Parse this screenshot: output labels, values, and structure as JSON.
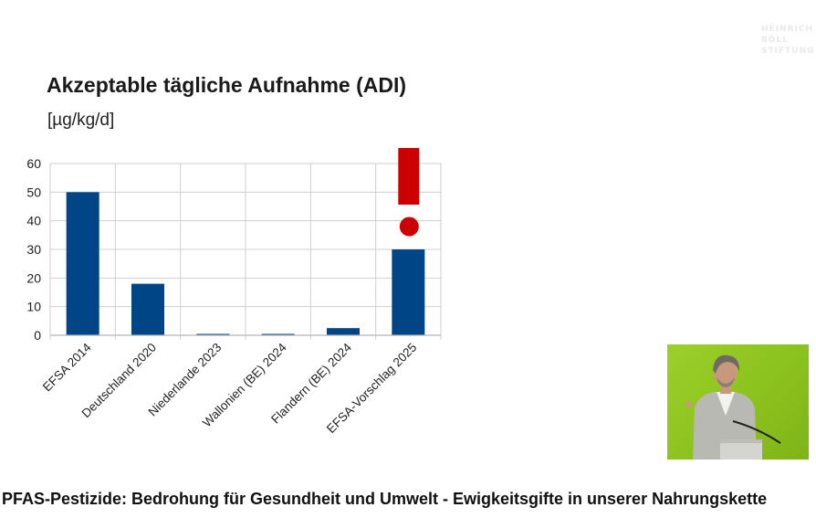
{
  "logo": {
    "lines": [
      "HEINRICH",
      "BÖLL",
      "STIFTUNG"
    ]
  },
  "slide": {
    "title": "Akzeptable tägliche Aufnahme (ADI)",
    "unit": "[µg/kg/d]"
  },
  "chart_data": {
    "type": "bar",
    "title": "Akzeptable tägliche Aufnahme (ADI)",
    "ylabel": "[µg/kg/d]",
    "xlabel": "",
    "categories": [
      "EFSA 2014",
      "Deutschland 2020",
      "Niederlande 2023",
      "Wallonien (BE) 2024",
      "Flandern (BE) 2024",
      "EFSA-Vorschlag 2025"
    ],
    "values": [
      50,
      18,
      0.3,
      0.3,
      2.5,
      30
    ],
    "ylim": [
      0,
      60
    ],
    "yticks": [
      0,
      10,
      20,
      30,
      40,
      50,
      60
    ],
    "grid": true,
    "bar_color": "#004586",
    "annotation": {
      "symbol": "exclamation-mark",
      "category": "EFSA-Vorschlag 2025",
      "color": "#cc0000"
    }
  },
  "video": {
    "description_icon": "speaker-at-podium"
  },
  "caption": "PFAS-Pestizide: Bedrohung für Gesundheit und Umwelt - Ewigkeitsgifte in unserer Nahrungskette"
}
